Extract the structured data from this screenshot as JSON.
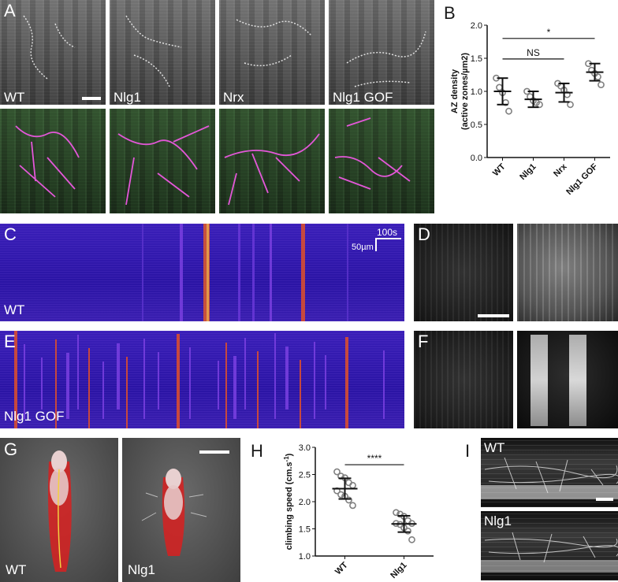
{
  "panels": {
    "A": {
      "letter": "A",
      "labels": [
        "WT",
        "Nlg1",
        "Nrx",
        "Nlg1 GOF"
      ]
    },
    "B": {
      "letter": "B"
    },
    "C": {
      "letter": "C",
      "label": "WT",
      "scale_time": "100s",
      "scale_space": "50µm"
    },
    "D": {
      "letter": "D"
    },
    "E": {
      "letter": "E",
      "label": "Nlg1 GOF"
    },
    "F": {
      "letter": "F"
    },
    "G": {
      "letter": "G",
      "labels": [
        "WT",
        "Nlg1"
      ]
    },
    "H": {
      "letter": "H"
    },
    "I": {
      "letter": "I",
      "labels": [
        "WT",
        "Nlg1"
      ]
    }
  },
  "chart_data": [
    {
      "panel": "B",
      "type": "scatter",
      "ylabel": "AZ density (active zones/µm2)",
      "ylabel_lines": [
        "AZ density",
        "(active zones/µm2)"
      ],
      "categories": [
        "WT",
        "Nlg1",
        "Nrx",
        "Nlg1 GOF"
      ],
      "ylim": [
        0.0,
        2.0
      ],
      "yticks": [
        "0.0",
        "0.5",
        "1.0",
        "1.5",
        "2.0"
      ],
      "means": [
        1.0,
        0.88,
        0.98,
        1.29
      ],
      "sd": [
        0.2,
        0.12,
        0.14,
        0.13
      ],
      "points": [
        [
          1.2,
          1.06,
          0.98,
          0.83,
          0.7
        ],
        [
          1.0,
          0.92,
          0.86,
          0.83,
          0.8
        ],
        [
          1.12,
          1.08,
          1.02,
          0.95,
          0.8
        ],
        [
          1.42,
          1.32,
          1.27,
          1.22,
          1.1
        ]
      ],
      "annotations": [
        {
          "from": "WT",
          "to": "Nlg1 GOF",
          "y": 1.8,
          "text": "*"
        },
        {
          "from": "WT",
          "to": "Nrx",
          "y": 1.49,
          "text": "NS"
        }
      ],
      "point_color": "#808080"
    },
    {
      "panel": "H",
      "type": "scatter",
      "ylabel": "climbing speed (cm.s-1)",
      "ylabel_main": "climbing speed (cm.s",
      "ylabel_sup": "-1",
      "ylabel_end": ")",
      "categories": [
        "WT",
        "Nlg1"
      ],
      "ylim": [
        1.0,
        3.0
      ],
      "yticks": [
        "1.0",
        "1.5",
        "2.0",
        "2.5",
        "3.0"
      ],
      "means": [
        2.24,
        1.59
      ],
      "sd": [
        0.19,
        0.15
      ],
      "points": [
        [
          2.55,
          2.47,
          2.44,
          2.35,
          2.3,
          2.2,
          2.13,
          2.1,
          2.03,
          1.93
        ],
        [
          1.8,
          1.77,
          1.73,
          1.65,
          1.6,
          1.6,
          1.58,
          1.52,
          1.46,
          1.3
        ]
      ],
      "annotations": [
        {
          "from": "WT",
          "to": "Nlg1",
          "y": 2.68,
          "text": "****"
        }
      ],
      "point_color": "#808080"
    }
  ]
}
